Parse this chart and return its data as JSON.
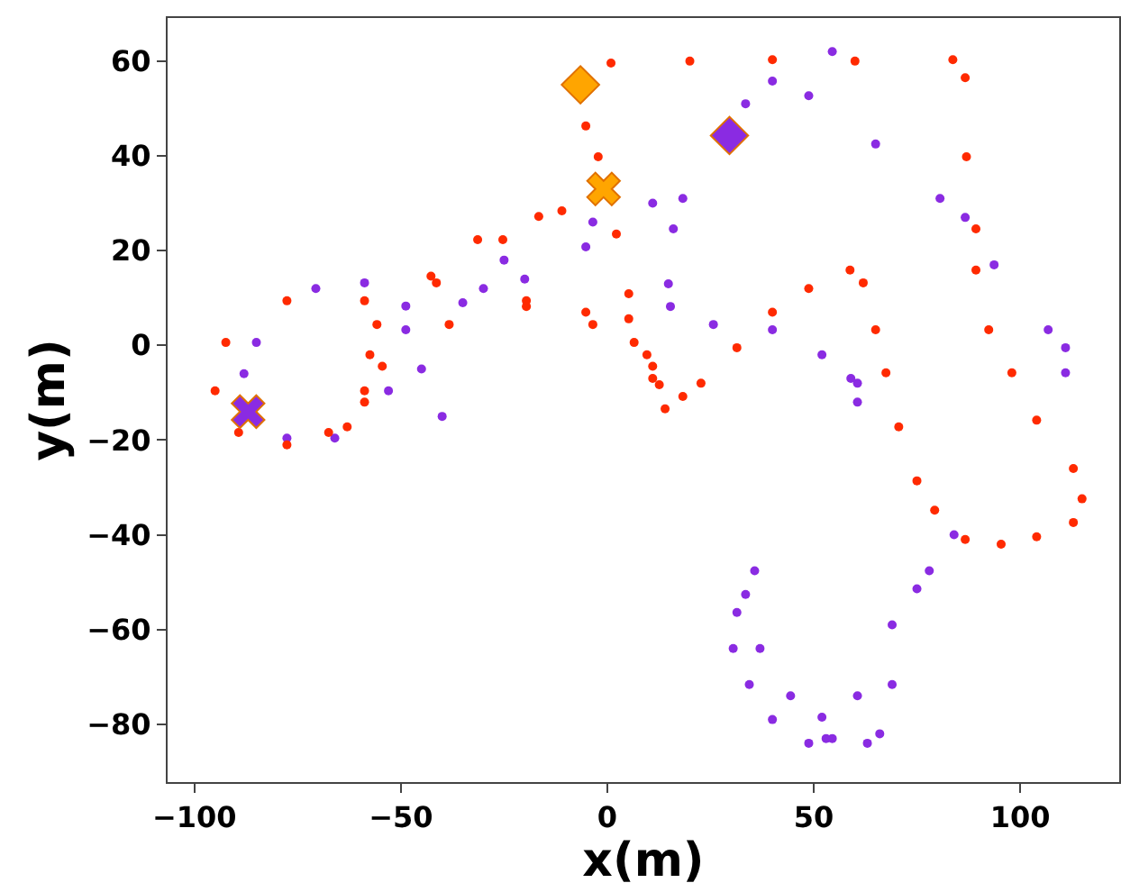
{
  "chart_data": {
    "type": "scatter",
    "xlabel": "x(m)",
    "ylabel": "y(m)",
    "xlim": [
      -106.5,
      124
    ],
    "ylim": [
      -92.2,
      69.1
    ],
    "xticks": [
      {
        "value": -100,
        "label": "−100"
      },
      {
        "value": -50,
        "label": "−50"
      },
      0,
      50,
      100
    ],
    "yticks": [
      {
        "value": -80,
        "label": "−80"
      },
      {
        "value": -60,
        "label": "−60"
      },
      {
        "value": -40,
        "label": "−40"
      },
      {
        "value": -20,
        "label": "−20"
      },
      0,
      20,
      40,
      60
    ],
    "series": [
      {
        "color": "#8a2be2",
        "marker": "circle",
        "x": [
          33.5,
          40,
          48.8,
          54.5,
          65,
          80.6,
          86.7,
          93.7,
          106.8,
          111,
          111,
          84,
          78,
          69,
          66,
          63,
          54.5,
          52,
          44.4,
          37,
          33.5,
          35.7,
          60.6,
          60.6,
          59,
          52,
          40,
          25.7,
          15.3,
          14.8,
          16,
          18.3,
          11,
          -3.5,
          -5.2,
          -20,
          -35,
          -48.8,
          -58.8,
          -70.6,
          -85,
          -88,
          -77.6,
          -66,
          -53,
          -48.8,
          -30,
          31.4,
          30.5,
          34.4,
          40,
          48.8,
          53,
          60.6,
          69,
          75,
          -45,
          -40,
          -25
        ],
        "values": [
          51,
          55.8,
          52.7,
          62,
          42.5,
          31,
          27,
          17,
          3.3,
          -0.5,
          -5.8,
          -40,
          -47.6,
          -71.6,
          -82,
          -84,
          -83,
          -78.5,
          -74,
          -64,
          -52.6,
          -47.6,
          -12,
          -8,
          -7,
          -2,
          3.3,
          4.4,
          8.2,
          13,
          24.6,
          31,
          30,
          26,
          20.8,
          14,
          9,
          8.3,
          13.2,
          12,
          0.6,
          -6,
          -19.6,
          -19.6,
          -9.6,
          3.3,
          12,
          -56.4,
          -64,
          -71.6,
          -79,
          -84,
          -83,
          -74,
          -59,
          -51.4,
          -5,
          -15,
          18
        ]
      },
      {
        "color": "#ff2a00",
        "marker": "circle",
        "x": [
          0.9,
          20,
          40,
          60,
          83.7,
          86.7,
          87,
          89.3,
          89.3,
          92.4,
          98,
          104,
          112.9,
          115,
          112.9,
          104,
          95.4,
          86.7,
          79.3,
          75,
          70.6,
          67.5,
          65,
          62,
          58.8,
          48.8,
          40,
          31.4,
          22.7,
          18.3,
          14,
          12.6,
          11,
          -3.5,
          -19.6,
          -38.3,
          -58.8,
          -77.6,
          -92.4,
          -95,
          -89.3,
          -77.6,
          -67.5,
          -58.8,
          -54.5,
          -55.8,
          -41.4,
          -25.3,
          -11,
          -42.7,
          -31.4,
          -16.6,
          -5.2,
          -2.2,
          2.2,
          5.2,
          9.6,
          5.2,
          -57.5,
          -58.8,
          -63,
          -19.6,
          -5.2,
          6.5,
          11
        ],
        "values": [
          59.6,
          60,
          60.3,
          60,
          60.3,
          56.5,
          39.8,
          24.6,
          15.9,
          3.3,
          -5.8,
          -15.8,
          -26,
          -32.4,
          -37.4,
          -40.4,
          -42,
          -41,
          -34.8,
          -28.6,
          -17.2,
          -5.8,
          3.3,
          13.2,
          15.9,
          12,
          7,
          -0.5,
          -8,
          -10.8,
          -13.4,
          -8.3,
          -4.4,
          4.4,
          8.2,
          4.4,
          9.4,
          9.4,
          0.6,
          -9.6,
          -18.4,
          -21,
          -18.4,
          -12,
          -4.4,
          4.4,
          13.2,
          22.3,
          28.4,
          14.6,
          22.3,
          27.2,
          46.3,
          39.8,
          23.5,
          10.9,
          -2,
          5.6,
          -2,
          -9.6,
          -17.2,
          9.4,
          7,
          0.6,
          -7
        ]
      },
      {
        "color": "#ffa500",
        "marker": "diamond",
        "x": [
          -6.5
        ],
        "values": [
          55
        ]
      },
      {
        "color": "#ffa500",
        "marker": "cross",
        "x": [
          -0.9
        ],
        "values": [
          33
        ]
      },
      {
        "color": "#8a2be2",
        "marker": "diamond",
        "x": [
          29.6
        ],
        "values": [
          44.3
        ]
      },
      {
        "color": "#8a2be2",
        "marker": "cross",
        "x": [
          -87
        ],
        "values": [
          -14
        ]
      }
    ]
  }
}
